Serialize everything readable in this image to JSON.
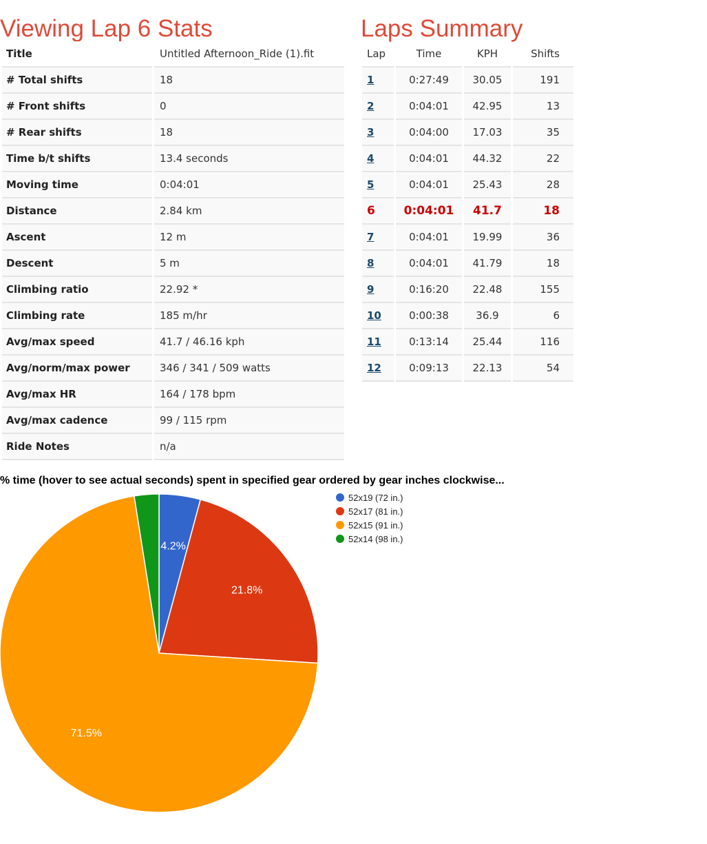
{
  "stats": {
    "heading": "Viewing Lap 6 Stats",
    "rows": [
      {
        "label": "Title",
        "value": "Untitled Afternoon_Ride (1).fit"
      },
      {
        "label": "# Total shifts",
        "value": "18"
      },
      {
        "label": "# Front shifts",
        "value": "0"
      },
      {
        "label": "# Rear shifts",
        "value": "18"
      },
      {
        "label": "Time b/t shifts",
        "value": "13.4 seconds"
      },
      {
        "label": "Moving time",
        "value": "0:04:01"
      },
      {
        "label": "Distance",
        "value": "2.84 km"
      },
      {
        "label": "Ascent",
        "value": "12 m"
      },
      {
        "label": "Descent",
        "value": "5 m"
      },
      {
        "label": "Climbing ratio",
        "value": "22.92 *"
      },
      {
        "label": "Climbing rate",
        "value": "185 m/hr"
      },
      {
        "label": "Avg/max speed",
        "value": "41.7 / 46.16 kph"
      },
      {
        "label": "Avg/norm/max power",
        "value": "346 / 341 / 509 watts"
      },
      {
        "label": "Avg/max HR",
        "value": "164 / 178 bpm"
      },
      {
        "label": "Avg/max cadence",
        "value": "99 / 115 rpm"
      },
      {
        "label": "Ride Notes",
        "value": "n/a"
      }
    ]
  },
  "laps": {
    "heading": "Laps Summary",
    "columns": [
      "Lap",
      "Time",
      "KPH",
      "Shifts"
    ],
    "current_lap": "6",
    "rows": [
      {
        "lap": "1",
        "time": "0:27:49",
        "kph": "30.05",
        "shifts": "191"
      },
      {
        "lap": "2",
        "time": "0:04:01",
        "kph": "42.95",
        "shifts": "13"
      },
      {
        "lap": "3",
        "time": "0:04:00",
        "kph": "17.03",
        "shifts": "35"
      },
      {
        "lap": "4",
        "time": "0:04:01",
        "kph": "44.32",
        "shifts": "22"
      },
      {
        "lap": "5",
        "time": "0:04:01",
        "kph": "25.43",
        "shifts": "28"
      },
      {
        "lap": "6",
        "time": "0:04:01",
        "kph": "41.7",
        "shifts": "18"
      },
      {
        "lap": "7",
        "time": "0:04:01",
        "kph": "19.99",
        "shifts": "36"
      },
      {
        "lap": "8",
        "time": "0:04:01",
        "kph": "41.79",
        "shifts": "18"
      },
      {
        "lap": "9",
        "time": "0:16:20",
        "kph": "22.48",
        "shifts": "155"
      },
      {
        "lap": "10",
        "time": "0:00:38",
        "kph": "36.9",
        "shifts": "6"
      },
      {
        "lap": "11",
        "time": "0:13:14",
        "kph": "25.44",
        "shifts": "116"
      },
      {
        "lap": "12",
        "time": "0:09:13",
        "kph": "22.13",
        "shifts": "54"
      }
    ]
  },
  "chart_data": {
    "type": "pie",
    "title": "% time (hover to see actual seconds) spent in specified gear ordered by gear inches clockwise...",
    "legend_position": "right",
    "slices": [
      {
        "label": "52x19 (72 in.)",
        "value": 4.2,
        "color": "#3366cc",
        "show_label": true
      },
      {
        "label": "52x17 (81 in.)",
        "value": 21.8,
        "color": "#dc3912",
        "show_label": true
      },
      {
        "label": "52x15 (91 in.)",
        "value": 71.5,
        "color": "#ff9900",
        "show_label": true
      },
      {
        "label": "52x14 (98 in.)",
        "value": 2.5,
        "color": "#109618",
        "show_label": false
      }
    ]
  }
}
